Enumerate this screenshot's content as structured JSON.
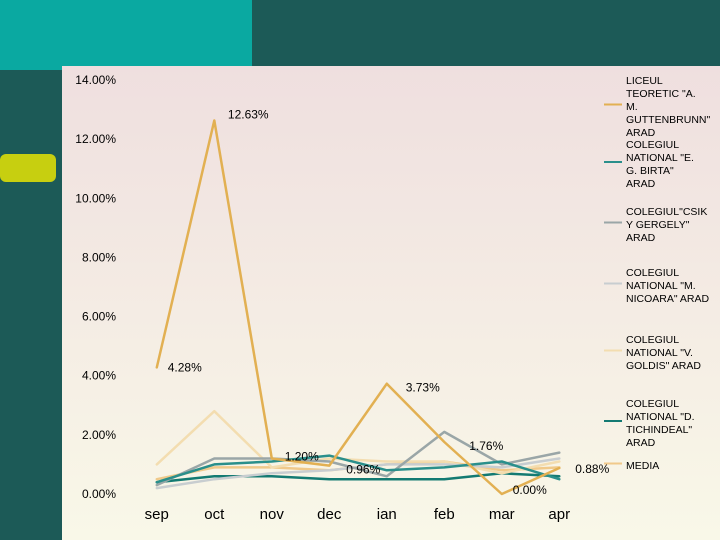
{
  "theme": {
    "teal": "#0aa9a1",
    "dark_green": "#1c5a57",
    "yellow_green": "#c7cf10",
    "panel_top": "#efdfdf",
    "panel_bottom": "#f9f8e8"
  },
  "chart_data": {
    "type": "line",
    "title": "",
    "xlabel": "",
    "ylabel": "",
    "ylim": [
      0,
      14
    ],
    "y_ticks": [
      "0.00%",
      "2.00%",
      "4.00%",
      "6.00%",
      "8.00%",
      "10.00%",
      "12.00%",
      "14.00%"
    ],
    "categories": [
      "sep",
      "oct",
      "nov",
      "dec",
      "ian",
      "feb",
      "mar",
      "apr"
    ],
    "legend_position": "right",
    "grid": false,
    "series": [
      {
        "name": "LICEUL TEORETIC \"A. M. GUTTENBRUNN\" ARAD",
        "color": "#e2b052",
        "values": [
          4.28,
          12.63,
          1.2,
          0.96,
          3.73,
          1.76,
          0.0,
          0.88
        ]
      },
      {
        "name": "COLEGIUL NATIONAL \"E. G. BIRTA\" ARAD",
        "color": "#2a8f8b",
        "values": [
          0.4,
          1.0,
          1.1,
          1.3,
          0.8,
          0.9,
          1.1,
          0.5
        ]
      },
      {
        "name": "COLEGIUL\"CSIKY GERGELY\" ARAD",
        "color": "#9aa6a7",
        "values": [
          0.3,
          1.2,
          1.2,
          1.1,
          0.6,
          2.1,
          1.0,
          1.4
        ]
      },
      {
        "name": "COLEGIUL NATIONAL \"M. NICOARA\" ARAD",
        "color": "#c8cdd0",
        "values": [
          0.2,
          0.5,
          0.7,
          0.8,
          1.0,
          1.0,
          0.9,
          1.2
        ]
      },
      {
        "name": "COLEGIUL NATIONAL \"V. GOLDIS\" ARAD",
        "color": "#f3ddb0",
        "values": [
          1.0,
          2.8,
          0.9,
          1.2,
          1.1,
          1.1,
          0.7,
          1.1
        ]
      },
      {
        "name": "COLEGIUL NATIONAL \"D. TICHINDEAL\" ARAD",
        "color": "#137a72",
        "values": [
          0.4,
          0.6,
          0.6,
          0.5,
          0.5,
          0.5,
          0.7,
          0.6
        ]
      },
      {
        "name": "MEDIA",
        "color": "#f0c98a",
        "values": [
          0.5,
          0.9,
          0.9,
          0.8,
          1.0,
          1.1,
          0.8,
          0.9
        ]
      }
    ],
    "annotations": [
      {
        "text": "12.63%",
        "category": "oct",
        "value": 12.63
      },
      {
        "text": "4.28%",
        "category": "sep",
        "value": 4.28
      },
      {
        "text": "3.73%",
        "category": "ian",
        "value": 3.73
      },
      {
        "text": "1.20%",
        "category": "nov",
        "value": 1.2
      },
      {
        "text": "0.96%",
        "category": "dec",
        "value": 0.96
      },
      {
        "text": "1.76%",
        "category": "feb",
        "value": 1.76
      },
      {
        "text": "0.88%",
        "category": "apr",
        "value": 0.88
      },
      {
        "text": "0.00%",
        "category": "mar",
        "value": 0.0
      }
    ]
  }
}
